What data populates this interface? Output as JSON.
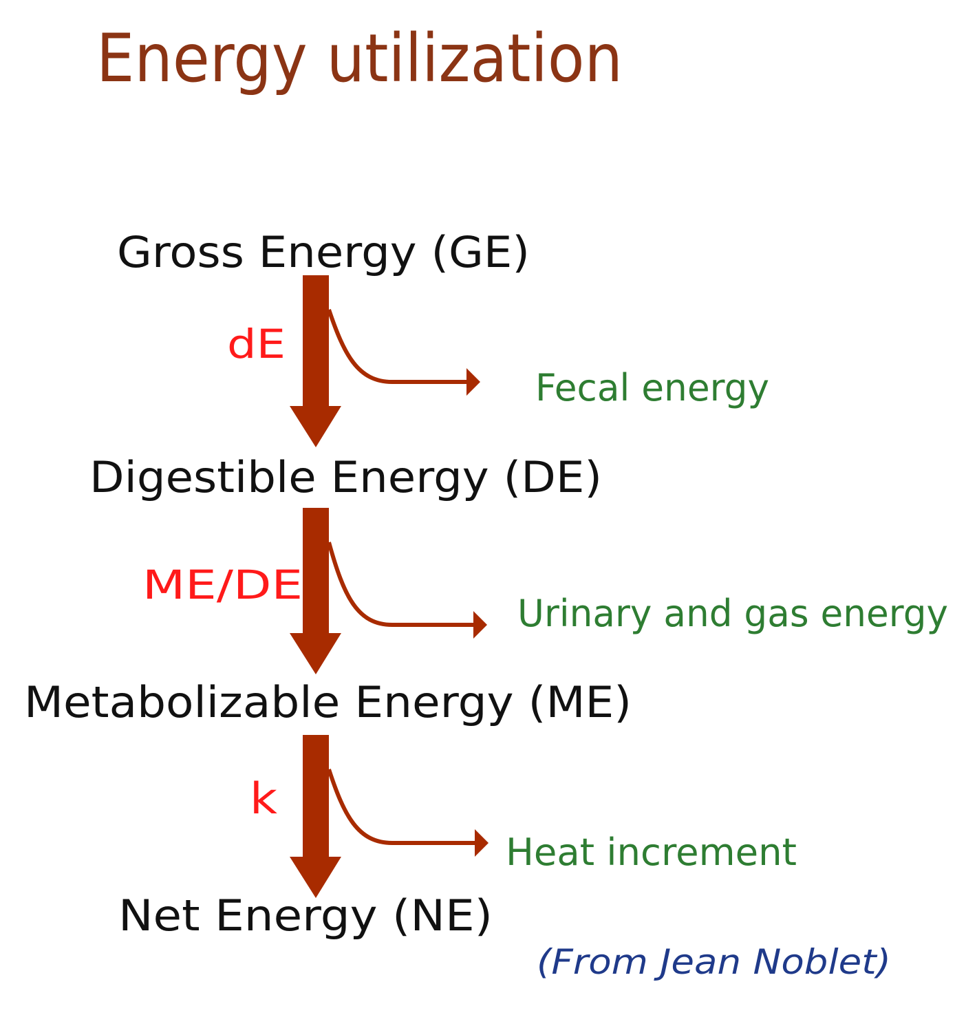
{
  "title": "Energy utilization",
  "levels": [
    {
      "label": "Gross Energy (GE)"
    },
    {
      "label": "Digestible Energy (DE)"
    },
    {
      "label": "Metabolizable Energy (ME)"
    },
    {
      "label": "Net Energy (NE)"
    }
  ],
  "transitions": [
    {
      "coefficient": "dE",
      "loss": "Fecal energy"
    },
    {
      "coefficient": "ME/DE",
      "loss": "Urinary and gas energy"
    },
    {
      "coefficient": "k",
      "loss": "Heat increment"
    }
  ],
  "source": "(From Jean Noblet)",
  "colors": {
    "title": "#8B3414",
    "arrow": "#A82B00",
    "coefficient": "#FF1A1A",
    "loss": "#2E7D32",
    "level": "#111111",
    "source": "#1F3A8A"
  }
}
